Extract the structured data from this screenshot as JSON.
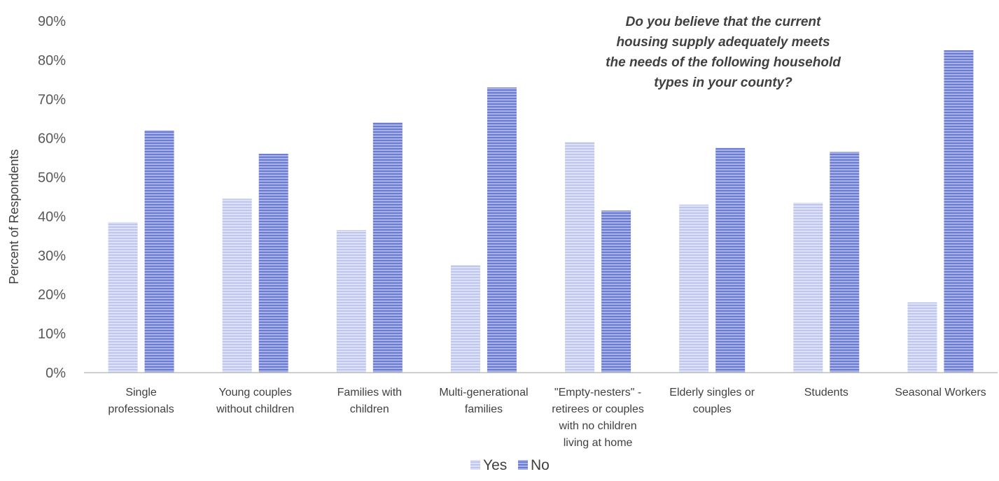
{
  "chart_data": {
    "type": "bar",
    "title_lines": [
      "Do you believe that the current",
      "housing supply adequately meets",
      "the needs of the following household",
      "types in your county?"
    ],
    "ylabel": "Percent of Respondents",
    "xlabel": "",
    "ylim": [
      0,
      90
    ],
    "y_ticks": [
      "0%",
      "10%",
      "20%",
      "30%",
      "40%",
      "50%",
      "60%",
      "70%",
      "80%",
      "90%"
    ],
    "grid": false,
    "legend_position": "bottom",
    "categories": [
      [
        "Single",
        "professionals"
      ],
      [
        "Young couples",
        "without children"
      ],
      [
        "Families with",
        "children"
      ],
      [
        "Multi-generational",
        "families"
      ],
      [
        "\"Empty-nesters\" -",
        "retirees or couples",
        "with no children",
        "living at home"
      ],
      [
        "Elderly singles or",
        "couples"
      ],
      [
        "Students"
      ],
      [
        "Seasonal Workers"
      ]
    ],
    "series": [
      {
        "name": "Yes",
        "color": "#c5cbee",
        "values": [
          38.5,
          44.5,
          36.5,
          27.5,
          59,
          43,
          43.5,
          18
        ]
      },
      {
        "name": "No",
        "color": "#7f8dd8",
        "values": [
          62,
          56,
          64,
          73,
          41.5,
          57.5,
          56.5,
          82.5
        ]
      }
    ]
  }
}
